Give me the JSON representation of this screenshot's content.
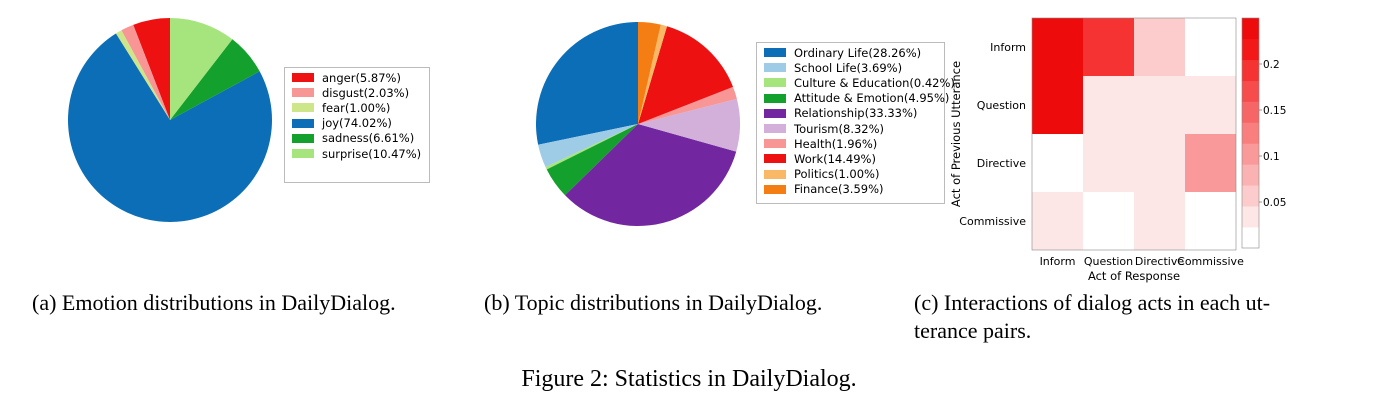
{
  "chart_data": [
    {
      "type": "pie",
      "caption": "(a)  Emotion distributions in DailyDialog.",
      "labels": [
        "anger(5.87%)",
        "disgust(2.03%)",
        "fear(1.00%)",
        "joy(74.02%)",
        "sadness(6.61%)",
        "surprise(10.47%)"
      ],
      "categories": [
        "anger",
        "disgust",
        "fear",
        "joy",
        "sadness",
        "surprise"
      ],
      "values": [
        5.87,
        2.03,
        1.0,
        74.02,
        6.61,
        10.47
      ],
      "colors": [
        "#ee1111",
        "#f89595",
        "#cde68a",
        "#0c6eb6",
        "#14a02c",
        "#a6e57d"
      ],
      "legend_position": "right",
      "slice_order": "counter-clockwise from top"
    },
    {
      "type": "pie",
      "caption": "(b)  Topic distributions in DailyDialog.",
      "labels": [
        "Ordinary Life(28.26%)",
        "School Life(3.69%)",
        "Culture & Education(0.42%)",
        "Attitude & Emotion(4.95%)",
        "Relationship(33.33%)",
        "Tourism(8.32%)",
        "Health(1.96%)",
        "Work(14.49%)",
        "Politics(1.00%)",
        "Finance(3.59%)"
      ],
      "categories": [
        "Ordinary Life",
        "School Life",
        "Culture & Education",
        "Attitude & Emotion",
        "Relationship",
        "Tourism",
        "Health",
        "Work",
        "Politics",
        "Finance"
      ],
      "values": [
        28.26,
        3.69,
        0.42,
        4.95,
        33.33,
        8.32,
        1.96,
        14.49,
        1.0,
        3.59
      ],
      "colors": [
        "#0c6eb6",
        "#9ecbe6",
        "#a6e57d",
        "#14a02c",
        "#7227a0",
        "#d2b0da",
        "#f89595",
        "#ee1111",
        "#f9b865",
        "#f57e14"
      ],
      "legend_position": "right",
      "slice_order": "counter-clockwise from top"
    },
    {
      "type": "heatmap",
      "caption_line1": "(c)  Interactions of dialog acts in each ut-",
      "caption_line2": "terance pairs.",
      "xlabel": "Act of Response",
      "ylabel": "Act of Previous Utterance",
      "x": [
        "Inform",
        "Question",
        "Directive",
        "Commissive"
      ],
      "y": [
        "Inform",
        "Question",
        "Directive",
        "Commissive"
      ],
      "values": [
        [
          0.25,
          0.2,
          0.04,
          0.0
        ],
        [
          0.25,
          0.02,
          0.02,
          0.02
        ],
        [
          0.0,
          0.02,
          0.02,
          0.1
        ],
        [
          0.02,
          0.0,
          0.02,
          0.0
        ]
      ],
      "colorbar_ticks": [
        "0.2",
        "0.15",
        "0.1",
        "0.05"
      ],
      "colorbar_values": [
        0.2,
        0.15,
        0.1,
        0.05
      ],
      "colorbar_range": [
        0,
        0.25
      ],
      "colormap": [
        "#ffffff",
        "#fde6e6",
        "#fccccc",
        "#fbb2b2",
        "#fa9999",
        "#f97f7f",
        "#f76666",
        "#f64c4c",
        "#f53333",
        "#f41919",
        "#ee0b0b"
      ]
    }
  ],
  "figure_caption": "Figure 2: Statistics in DailyDialog."
}
